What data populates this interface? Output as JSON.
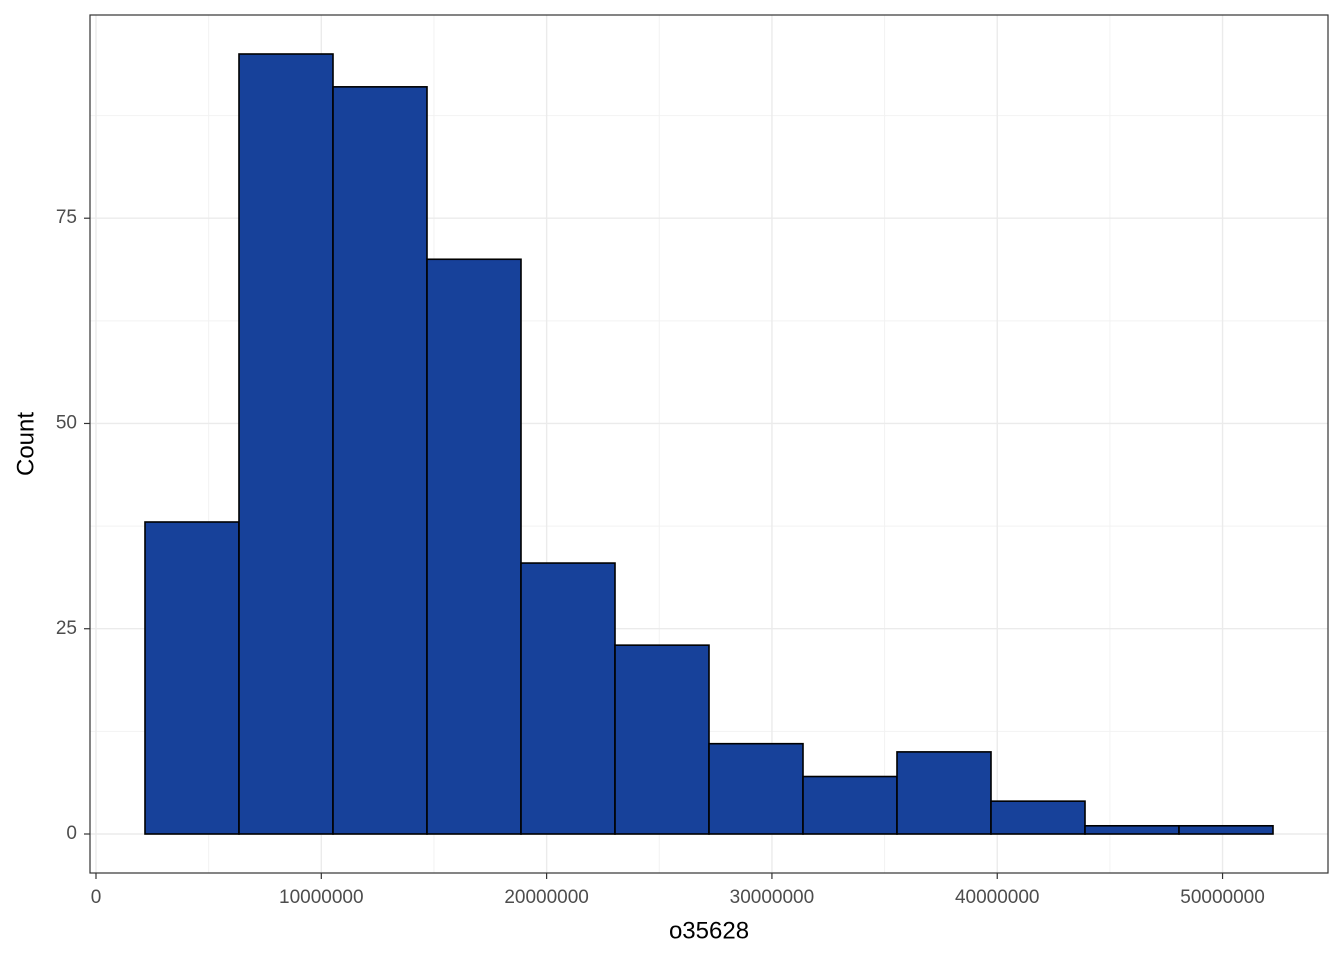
{
  "chart_data": {
    "type": "histogram",
    "x_label": "o35628",
    "y_label": "Count",
    "bins": [
      2175000,
      6347000,
      10519000,
      14691000,
      18863000,
      23035000,
      27207000,
      31379000,
      35551000,
      39723000,
      43895000,
      48067000,
      52239000
    ],
    "values": [
      38,
      95,
      91,
      70,
      33,
      23,
      11,
      7,
      10,
      4,
      1,
      1
    ],
    "color": "#17419a",
    "edge_color": "#000000",
    "xlim": [
      -266000,
      54680000
    ],
    "xticks": [
      0,
      10000000,
      20000000,
      30000000,
      40000000,
      50000000
    ],
    "ylim": [
      -4.75,
      99.75
    ],
    "yticks": [
      0,
      25,
      50,
      75
    ],
    "grid": true
  }
}
